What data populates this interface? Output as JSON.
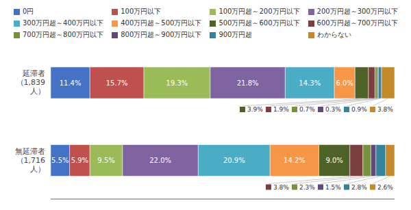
{
  "chart_data": {
    "type": "bar",
    "orientation": "horizontal",
    "stacked": true,
    "data_labels": true,
    "tick_labels": "y",
    "grid": false,
    "legend": "upper left",
    "categories": [
      "延滞者\n（1,839\n人）",
      "無延滞者\n（1,716\n人）"
    ],
    "xlim": [
      0,
      100
    ],
    "series": [
      {
        "name": "0円",
        "color": "#4472C4",
        "values": [
          11.4,
          5.5
        ],
        "value_labels": [
          "11.4%",
          "5.5%"
        ]
      },
      {
        "name": "100万円以下",
        "color": "#C0504D",
        "values": [
          15.7,
          5.9
        ],
        "value_labels": [
          "15.7%",
          "5.9%"
        ]
      },
      {
        "name": "100万円超～200万円以下",
        "color": "#9BBB59",
        "values": [
          19.3,
          9.5
        ],
        "value_labels": [
          "19.3%",
          "9.5%"
        ]
      },
      {
        "name": "200万円超～300万円以下",
        "color": "#8064A2",
        "values": [
          21.8,
          22.0
        ],
        "value_labels": [
          "21.8%",
          "22.0%"
        ]
      },
      {
        "name": "300万円超～400万円以下",
        "color": "#4BACC6",
        "values": [
          14.3,
          20.9
        ],
        "value_labels": [
          "14.3%",
          "20.9%"
        ]
      },
      {
        "name": "400万円超～500万円以下",
        "color": "#F79646",
        "values": [
          6.0,
          14.2
        ],
        "value_labels": [
          "6.0%",
          "14.2%"
        ]
      },
      {
        "name": "500万円超～600万円以下",
        "color": "#4F6228",
        "values": [
          3.9,
          9.0
        ],
        "value_labels": [
          "3.9%",
          "9.0%"
        ]
      },
      {
        "name": "600万円超～700万円以下",
        "color": "#7B3F3F",
        "values": [
          1.9,
          3.8
        ],
        "value_labels": [
          "1.9%",
          "3.8%"
        ]
      },
      {
        "name": "700万円超～800万円以下",
        "color": "#76923C",
        "values": [
          0.7,
          2.3
        ],
        "value_labels": [
          "0.7%",
          "2.3%"
        ]
      },
      {
        "name": "800万円超～900万円以下",
        "color": "#604A7B",
        "values": [
          0.3,
          1.5
        ],
        "value_labels": [
          "0.3%",
          "1.5%"
        ]
      },
      {
        "name": "900万円超",
        "color": "#31849B",
        "values": [
          0.9,
          2.8
        ],
        "value_labels": [
          "0.9%",
          "2.8%"
        ]
      },
      {
        "name": "わからない",
        "color": "#C4892A",
        "values": [
          3.8,
          2.6
        ],
        "value_labels": [
          "3.8%",
          "2.6%"
        ]
      }
    ]
  }
}
